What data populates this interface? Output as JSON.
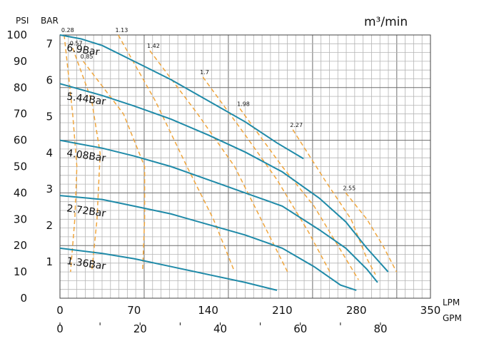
{
  "chart_data": {
    "type": "line",
    "title": "m³/min",
    "units": {
      "psi": "PSI",
      "bar": "BAR",
      "lpm": "LPM",
      "gpm": "GPM"
    },
    "x_lpm_ticks": [
      "0",
      "70",
      "140",
      "210",
      "280",
      "350"
    ],
    "x_gpm_ticks": [
      "0",
      "20",
      "40",
      "60",
      "80"
    ],
    "y_psi_ticks": [
      "0",
      "10",
      "20",
      "30",
      "40",
      "50",
      "60",
      "70",
      "80",
      "90",
      "100"
    ],
    "y_bar_ticks": [
      "1",
      "2",
      "3",
      "4",
      "5",
      "6",
      "7"
    ],
    "xlim_lpm": [
      0,
      350
    ],
    "ylim_psi": [
      0,
      100
    ],
    "grid": true,
    "series": [
      {
        "name": "6.9Bar",
        "points": [
          [
            0,
            100
          ],
          [
            20,
            98.5
          ],
          [
            40,
            96
          ],
          [
            70,
            90
          ],
          [
            105,
            83
          ],
          [
            140,
            75
          ],
          [
            175,
            67
          ],
          [
            205,
            59
          ],
          [
            230,
            53
          ]
        ]
      },
      {
        "name": "5.44Bar",
        "points": [
          [
            0,
            81.5
          ],
          [
            40,
            77
          ],
          [
            70,
            73
          ],
          [
            105,
            68
          ],
          [
            140,
            62
          ],
          [
            175,
            55.5
          ],
          [
            210,
            48
          ],
          [
            245,
            38
          ],
          [
            270,
            29
          ],
          [
            290,
            19
          ],
          [
            310,
            10
          ]
        ]
      },
      {
        "name": "4.08Bar",
        "points": [
          [
            0,
            60
          ],
          [
            40,
            57
          ],
          [
            70,
            54
          ],
          [
            105,
            50
          ],
          [
            140,
            45
          ],
          [
            175,
            40
          ],
          [
            210,
            35
          ],
          [
            245,
            26
          ],
          [
            270,
            19
          ],
          [
            290,
            11
          ],
          [
            300,
            6
          ]
        ]
      },
      {
        "name": "2.72Bar",
        "points": [
          [
            0,
            39
          ],
          [
            40,
            37.5
          ],
          [
            70,
            35
          ],
          [
            105,
            32
          ],
          [
            140,
            28
          ],
          [
            175,
            24
          ],
          [
            210,
            19
          ],
          [
            240,
            12
          ],
          [
            265,
            5
          ],
          [
            280,
            3
          ]
        ]
      },
      {
        "name": "1.36Bar",
        "points": [
          [
            0,
            19
          ],
          [
            40,
            17
          ],
          [
            70,
            15
          ],
          [
            105,
            12
          ],
          [
            140,
            9
          ],
          [
            175,
            6
          ],
          [
            205,
            3
          ]
        ]
      }
    ],
    "flow_lines": [
      {
        "label": "0.28",
        "points": [
          [
            4,
            100
          ],
          [
            12,
            70
          ],
          [
            16,
            50
          ],
          [
            14,
            30
          ],
          [
            10,
            10
          ]
        ]
      },
      {
        "label": "0.57",
        "points": [
          [
            12,
            95
          ],
          [
            30,
            75
          ],
          [
            38,
            55
          ],
          [
            35,
            30
          ],
          [
            30,
            10
          ]
        ]
      },
      {
        "label": "0.85",
        "points": [
          [
            22,
            90
          ],
          [
            60,
            70
          ],
          [
            80,
            50
          ],
          [
            80,
            30
          ],
          [
            78,
            10
          ]
        ]
      },
      {
        "label": "1.13",
        "points": [
          [
            55,
            100
          ],
          [
            90,
            75
          ],
          [
            120,
            50
          ],
          [
            145,
            30
          ],
          [
            165,
            10
          ]
        ]
      },
      {
        "label": "1.42",
        "points": [
          [
            85,
            94
          ],
          [
            130,
            70
          ],
          [
            165,
            50
          ],
          [
            190,
            30
          ],
          [
            215,
            10
          ]
        ]
      },
      {
        "label": "1.7",
        "points": [
          [
            135,
            84
          ],
          [
            175,
            62
          ],
          [
            205,
            45
          ],
          [
            235,
            25
          ],
          [
            255,
            10
          ]
        ]
      },
      {
        "label": "1.98",
        "points": [
          [
            170,
            72
          ],
          [
            210,
            50
          ],
          [
            240,
            35
          ],
          [
            270,
            15
          ],
          [
            282,
            7
          ]
        ]
      },
      {
        "label": "2.27",
        "points": [
          [
            220,
            64
          ],
          [
            250,
            45
          ],
          [
            275,
            30
          ],
          [
            290,
            15
          ],
          [
            298,
            9
          ]
        ]
      },
      {
        "label": "2.55",
        "points": [
          [
            270,
            40
          ],
          [
            290,
            30
          ],
          [
            305,
            20
          ],
          [
            318,
            10
          ]
        ]
      }
    ]
  }
}
